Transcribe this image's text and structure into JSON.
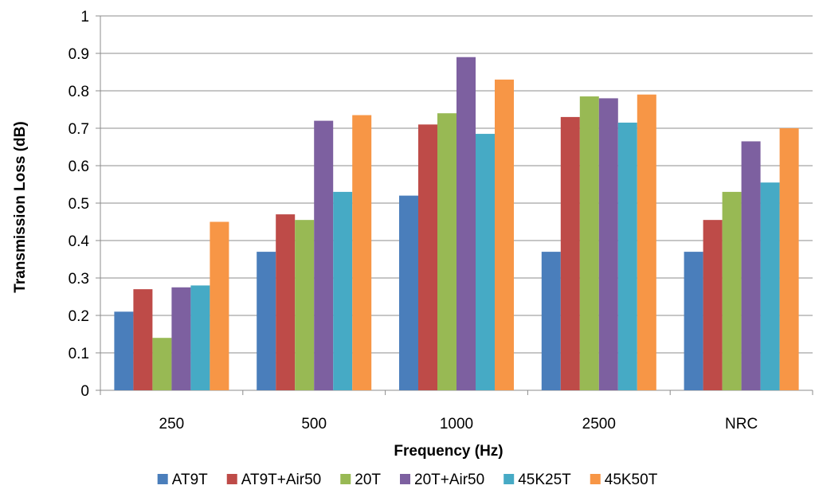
{
  "chart_data": {
    "type": "bar",
    "categories": [
      "250",
      "500",
      "1000",
      "2500",
      "NRC"
    ],
    "series": [
      {
        "name": "AT9T",
        "color": "#4a7ebb",
        "values": [
          0.21,
          0.37,
          0.52,
          0.37,
          0.37
        ]
      },
      {
        "name": "AT9T+Air50",
        "color": "#be4b48",
        "values": [
          0.27,
          0.47,
          0.71,
          0.73,
          0.455
        ]
      },
      {
        "name": "20T",
        "color": "#98b954",
        "values": [
          0.14,
          0.455,
          0.74,
          0.785,
          0.53
        ]
      },
      {
        "name": "20T+Air50",
        "color": "#7d60a0",
        "values": [
          0.275,
          0.72,
          0.89,
          0.78,
          0.665
        ]
      },
      {
        "name": "45K25T",
        "color": "#46aac5",
        "values": [
          0.28,
          0.53,
          0.685,
          0.715,
          0.555
        ]
      },
      {
        "name": "45K50T",
        "color": "#f79646",
        "values": [
          0.45,
          0.735,
          0.83,
          0.79,
          0.7
        ]
      }
    ],
    "yticks": [
      "0",
      "0.1",
      "0.2",
      "0.3",
      "0.4",
      "0.5",
      "0.6",
      "0.7",
      "0.8",
      "0.9",
      "1"
    ],
    "ylim": [
      0,
      1
    ],
    "xlabel": "Frequency (Hz)",
    "ylabel": "Transmission  Loss (dB)",
    "grid": true,
    "legend_position": "bottom"
  }
}
